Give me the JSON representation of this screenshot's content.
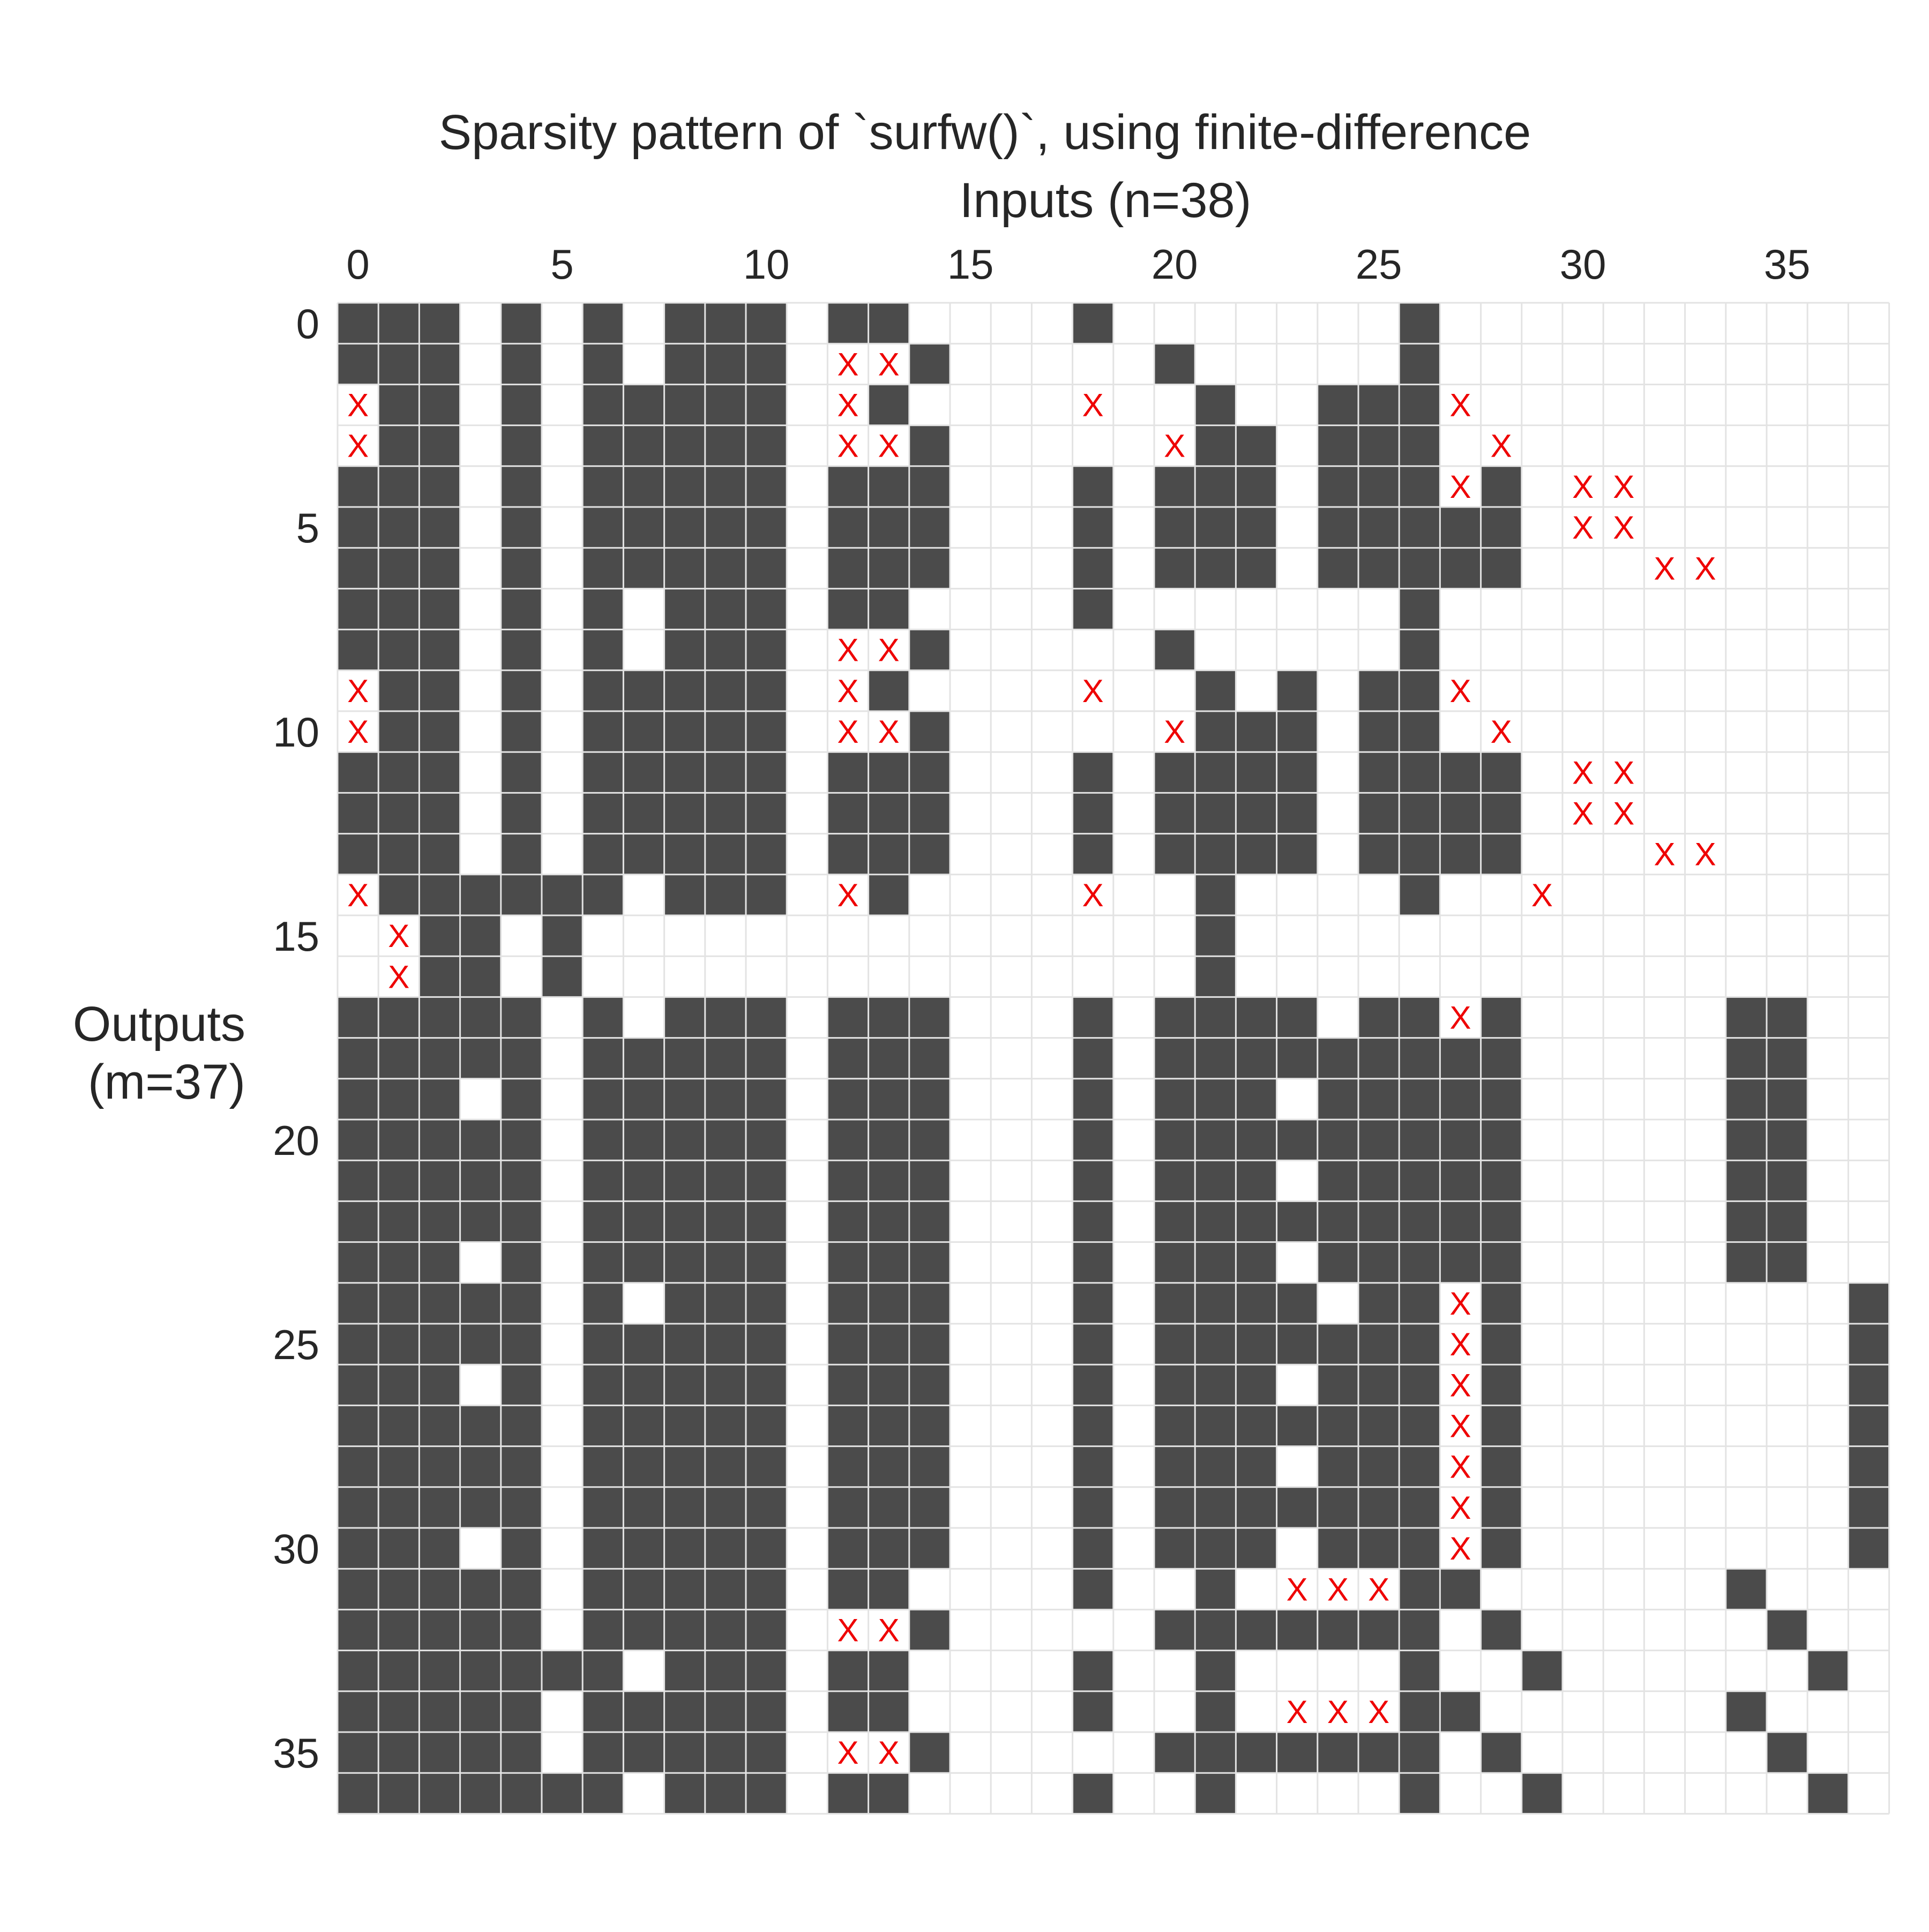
{
  "chart_data": {
    "type": "heatmap",
    "title": "Sparsity pattern of `surfw()`, using finite-difference",
    "xlabel": "Inputs (n=38)",
    "ylabel_line1": "Outputs",
    "ylabel_line2": "(m=37)",
    "n_cols": 38,
    "n_rows": 37,
    "x_ticks": [
      0,
      5,
      10,
      15,
      20,
      25,
      30,
      35
    ],
    "y_ticks": [
      0,
      5,
      10,
      15,
      20,
      25,
      30,
      35
    ],
    "x_tick_labels": [
      "0",
      "5",
      "10",
      "15",
      "20",
      "25",
      "30",
      "35"
    ],
    "y_tick_labels": [
      "0",
      "5",
      "10",
      "15",
      "20",
      "25",
      "30",
      "35"
    ],
    "x_axis_position": "top",
    "grid": true,
    "filled_color": "#4b4b4b",
    "empty_color": "#ffffff",
    "grid_color": "#e3e3e3",
    "mismatch_color": "#ee0000",
    "mismatch_glyph": "X",
    "filled_cells": [
      [
        0,
        1,
        2,
        4,
        6,
        8,
        9,
        10,
        12,
        13,
        18,
        26
      ],
      [
        0,
        1,
        2,
        4,
        6,
        8,
        9,
        10,
        14,
        20,
        26
      ],
      [
        1,
        2,
        4,
        6,
        7,
        8,
        9,
        10,
        13,
        21,
        24,
        25,
        26
      ],
      [
        1,
        2,
        4,
        6,
        7,
        8,
        9,
        10,
        14,
        21,
        22,
        24,
        25,
        26
      ],
      [
        0,
        1,
        2,
        4,
        6,
        7,
        8,
        9,
        10,
        12,
        13,
        14,
        18,
        20,
        21,
        22,
        24,
        25,
        26,
        28
      ],
      [
        0,
        1,
        2,
        4,
        6,
        7,
        8,
        9,
        10,
        12,
        13,
        14,
        18,
        20,
        21,
        22,
        24,
        25,
        26,
        27,
        28
      ],
      [
        0,
        1,
        2,
        4,
        6,
        7,
        8,
        9,
        10,
        12,
        13,
        14,
        18,
        20,
        21,
        22,
        24,
        25,
        26,
        27,
        28
      ],
      [
        0,
        1,
        2,
        4,
        6,
        8,
        9,
        10,
        12,
        13,
        18,
        26
      ],
      [
        0,
        1,
        2,
        4,
        6,
        8,
        9,
        10,
        14,
        20,
        26
      ],
      [
        1,
        2,
        4,
        6,
        7,
        8,
        9,
        10,
        13,
        21,
        23,
        25,
        26
      ],
      [
        1,
        2,
        4,
        6,
        7,
        8,
        9,
        10,
        14,
        21,
        22,
        23,
        25,
        26
      ],
      [
        0,
        1,
        2,
        4,
        6,
        7,
        8,
        9,
        10,
        12,
        13,
        14,
        18,
        20,
        21,
        22,
        23,
        25,
        26,
        27,
        28
      ],
      [
        0,
        1,
        2,
        4,
        6,
        7,
        8,
        9,
        10,
        12,
        13,
        14,
        18,
        20,
        21,
        22,
        23,
        25,
        26,
        27,
        28
      ],
      [
        0,
        1,
        2,
        4,
        6,
        7,
        8,
        9,
        10,
        12,
        13,
        14,
        18,
        20,
        21,
        22,
        23,
        25,
        26,
        27,
        28
      ],
      [
        1,
        2,
        3,
        4,
        5,
        6,
        8,
        9,
        10,
        13,
        21,
        26
      ],
      [
        2,
        3,
        5,
        21
      ],
      [
        2,
        3,
        5,
        21
      ],
      [
        0,
        1,
        2,
        3,
        4,
        6,
        8,
        9,
        10,
        12,
        13,
        14,
        18,
        20,
        21,
        22,
        23,
        25,
        26,
        28,
        34,
        35
      ],
      [
        0,
        1,
        2,
        3,
        4,
        6,
        7,
        8,
        9,
        10,
        12,
        13,
        14,
        18,
        20,
        21,
        22,
        23,
        24,
        25,
        26,
        27,
        28,
        34,
        35
      ],
      [
        0,
        1,
        2,
        4,
        6,
        7,
        8,
        9,
        10,
        12,
        13,
        14,
        18,
        20,
        21,
        22,
        24,
        25,
        26,
        27,
        28,
        34,
        35
      ],
      [
        0,
        1,
        2,
        3,
        4,
        6,
        7,
        8,
        9,
        10,
        12,
        13,
        14,
        18,
        20,
        21,
        22,
        23,
        24,
        25,
        26,
        27,
        28,
        34,
        35
      ],
      [
        0,
        1,
        2,
        3,
        4,
        6,
        7,
        8,
        9,
        10,
        12,
        13,
        14,
        18,
        20,
        21,
        22,
        24,
        25,
        26,
        27,
        28,
        34,
        35
      ],
      [
        0,
        1,
        2,
        3,
        4,
        6,
        7,
        8,
        9,
        10,
        12,
        13,
        14,
        18,
        20,
        21,
        22,
        23,
        24,
        25,
        26,
        27,
        28,
        34,
        35
      ],
      [
        0,
        1,
        2,
        4,
        6,
        7,
        8,
        9,
        10,
        12,
        13,
        14,
        18,
        20,
        21,
        22,
        24,
        25,
        26,
        27,
        28,
        34,
        35
      ],
      [
        0,
        1,
        2,
        3,
        4,
        6,
        8,
        9,
        10,
        12,
        13,
        14,
        18,
        20,
        21,
        22,
        23,
        25,
        26,
        28,
        37
      ],
      [
        0,
        1,
        2,
        3,
        4,
        6,
        7,
        8,
        9,
        10,
        12,
        13,
        14,
        18,
        20,
        21,
        22,
        23,
        24,
        25,
        26,
        28,
        37
      ],
      [
        0,
        1,
        2,
        4,
        6,
        7,
        8,
        9,
        10,
        12,
        13,
        14,
        18,
        20,
        21,
        22,
        24,
        25,
        26,
        28,
        37
      ],
      [
        0,
        1,
        2,
        3,
        4,
        6,
        7,
        8,
        9,
        10,
        12,
        13,
        14,
        18,
        20,
        21,
        22,
        23,
        24,
        25,
        26,
        28,
        37
      ],
      [
        0,
        1,
        2,
        3,
        4,
        6,
        7,
        8,
        9,
        10,
        12,
        13,
        14,
        18,
        20,
        21,
        22,
        24,
        25,
        26,
        28,
        37
      ],
      [
        0,
        1,
        2,
        3,
        4,
        6,
        7,
        8,
        9,
        10,
        12,
        13,
        14,
        18,
        20,
        21,
        22,
        23,
        24,
        25,
        26,
        28,
        37
      ],
      [
        0,
        1,
        2,
        4,
        6,
        7,
        8,
        9,
        10,
        12,
        13,
        14,
        18,
        20,
        21,
        22,
        24,
        25,
        26,
        28,
        37
      ],
      [
        0,
        1,
        2,
        3,
        4,
        6,
        7,
        8,
        9,
        10,
        12,
        13,
        18,
        21,
        26,
        27,
        34
      ],
      [
        0,
        1,
        2,
        3,
        4,
        6,
        7,
        8,
        9,
        10,
        14,
        20,
        21,
        22,
        23,
        24,
        25,
        26,
        28,
        35
      ],
      [
        0,
        1,
        2,
        3,
        4,
        5,
        6,
        8,
        9,
        10,
        12,
        13,
        18,
        21,
        26,
        29,
        36
      ],
      [
        0,
        1,
        2,
        3,
        4,
        6,
        7,
        8,
        9,
        10,
        12,
        13,
        18,
        21,
        26,
        27,
        34
      ],
      [
        0,
        1,
        2,
        3,
        4,
        6,
        7,
        8,
        9,
        10,
        14,
        20,
        21,
        22,
        23,
        24,
        25,
        26,
        28,
        35
      ],
      [
        0,
        1,
        2,
        3,
        4,
        5,
        6,
        8,
        9,
        10,
        12,
        13,
        18,
        21,
        26,
        29,
        36
      ]
    ],
    "mismatch_cells": [
      [
        1,
        12
      ],
      [
        1,
        13
      ],
      [
        2,
        0
      ],
      [
        2,
        12
      ],
      [
        2,
        18
      ],
      [
        2,
        27
      ],
      [
        3,
        0
      ],
      [
        3,
        12
      ],
      [
        3,
        13
      ],
      [
        3,
        20
      ],
      [
        3,
        28
      ],
      [
        4,
        27
      ],
      [
        4,
        30
      ],
      [
        4,
        31
      ],
      [
        5,
        30
      ],
      [
        5,
        31
      ],
      [
        6,
        32
      ],
      [
        6,
        33
      ],
      [
        8,
        12
      ],
      [
        8,
        13
      ],
      [
        9,
        0
      ],
      [
        9,
        12
      ],
      [
        9,
        18
      ],
      [
        9,
        27
      ],
      [
        10,
        0
      ],
      [
        10,
        12
      ],
      [
        10,
        13
      ],
      [
        10,
        20
      ],
      [
        10,
        28
      ],
      [
        11,
        30
      ],
      [
        11,
        31
      ],
      [
        12,
        30
      ],
      [
        12,
        31
      ],
      [
        13,
        32
      ],
      [
        13,
        33
      ],
      [
        14,
        0
      ],
      [
        14,
        12
      ],
      [
        14,
        18
      ],
      [
        14,
        29
      ],
      [
        15,
        1
      ],
      [
        16,
        1
      ],
      [
        17,
        27
      ],
      [
        24,
        27
      ],
      [
        25,
        27
      ],
      [
        26,
        27
      ],
      [
        27,
        27
      ],
      [
        28,
        27
      ],
      [
        29,
        27
      ],
      [
        30,
        27
      ],
      [
        31,
        23
      ],
      [
        31,
        24
      ],
      [
        31,
        25
      ],
      [
        32,
        12
      ],
      [
        32,
        13
      ],
      [
        34,
        23
      ],
      [
        34,
        24
      ],
      [
        34,
        25
      ],
      [
        35,
        12
      ],
      [
        35,
        13
      ]
    ]
  }
}
